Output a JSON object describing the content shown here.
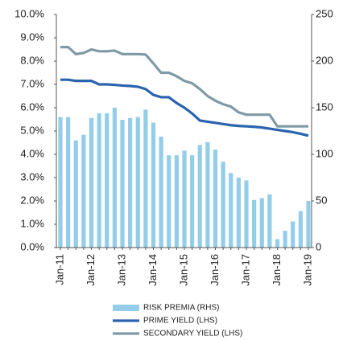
{
  "chart_data": {
    "type": "bar_line",
    "categories": [
      "Jan-11",
      null,
      null,
      null,
      "Jan-12",
      null,
      null,
      null,
      "Jan-13",
      null,
      null,
      null,
      "Jan-14",
      null,
      null,
      null,
      "Jan-15",
      null,
      null,
      null,
      "Jan-16",
      null,
      null,
      null,
      "Jan-17",
      null,
      null,
      null,
      "Jan-18",
      null,
      null,
      null,
      "Jan-19"
    ],
    "series": [
      {
        "name": "RISK PREMIA (RHS)",
        "type": "bar",
        "axis": "y2",
        "color": "#93cde8",
        "values": [
          140,
          140,
          115,
          121,
          139,
          144,
          144,
          150,
          137,
          139,
          140,
          148,
          134,
          119,
          99,
          99,
          104,
          99,
          110,
          113,
          105,
          92,
          80,
          75,
          72,
          51,
          53,
          57,
          9,
          18,
          28,
          39,
          50
        ]
      },
      {
        "name": "PRIME YIELD (LHS)",
        "type": "line",
        "color": "#2a63ae",
        "values": [
          7.2,
          7.2,
          7.15,
          7.15,
          7.15,
          7.0,
          7.0,
          6.98,
          6.95,
          6.93,
          6.9,
          6.8,
          6.55,
          6.45,
          6.45,
          6.2,
          6.0,
          5.75,
          5.45,
          5.4,
          5.35,
          5.3,
          5.25,
          5.22,
          5.2,
          5.18,
          5.15,
          5.1,
          5.05,
          5.0,
          4.95,
          4.88,
          4.8
        ]
      },
      {
        "name": "SECONDARY YIELD (LHS)",
        "type": "line",
        "color": "#7f9aa6",
        "values": [
          8.6,
          8.6,
          8.3,
          8.35,
          8.5,
          8.42,
          8.42,
          8.45,
          8.3,
          8.3,
          8.3,
          8.28,
          7.9,
          7.5,
          7.5,
          7.35,
          7.15,
          7.05,
          6.8,
          6.5,
          6.3,
          6.15,
          6.05,
          5.8,
          5.7,
          5.7,
          5.7,
          5.7,
          5.2,
          5.2,
          5.2,
          5.2,
          5.2
        ]
      }
    ],
    "ylim": [
      0,
      10
    ],
    "yticks": [
      {
        "value": 0,
        "label": "0.0%"
      },
      {
        "value": 1,
        "label": "1.0%"
      },
      {
        "value": 2,
        "label": "2.0%"
      },
      {
        "value": 3,
        "label": "3.0%"
      },
      {
        "value": 4,
        "label": "4.0%"
      },
      {
        "value": 5,
        "label": "5.0%"
      },
      {
        "value": 6,
        "label": "6.0%"
      },
      {
        "value": 7,
        "label": "7.0%"
      },
      {
        "value": 8,
        "label": "8.0%"
      },
      {
        "value": 9,
        "label": "9.0%"
      },
      {
        "value": 10,
        "label": "10.0%"
      }
    ],
    "y2lim": [
      0,
      250
    ],
    "y2ticks": [
      0,
      50,
      100,
      150,
      200,
      250
    ]
  }
}
